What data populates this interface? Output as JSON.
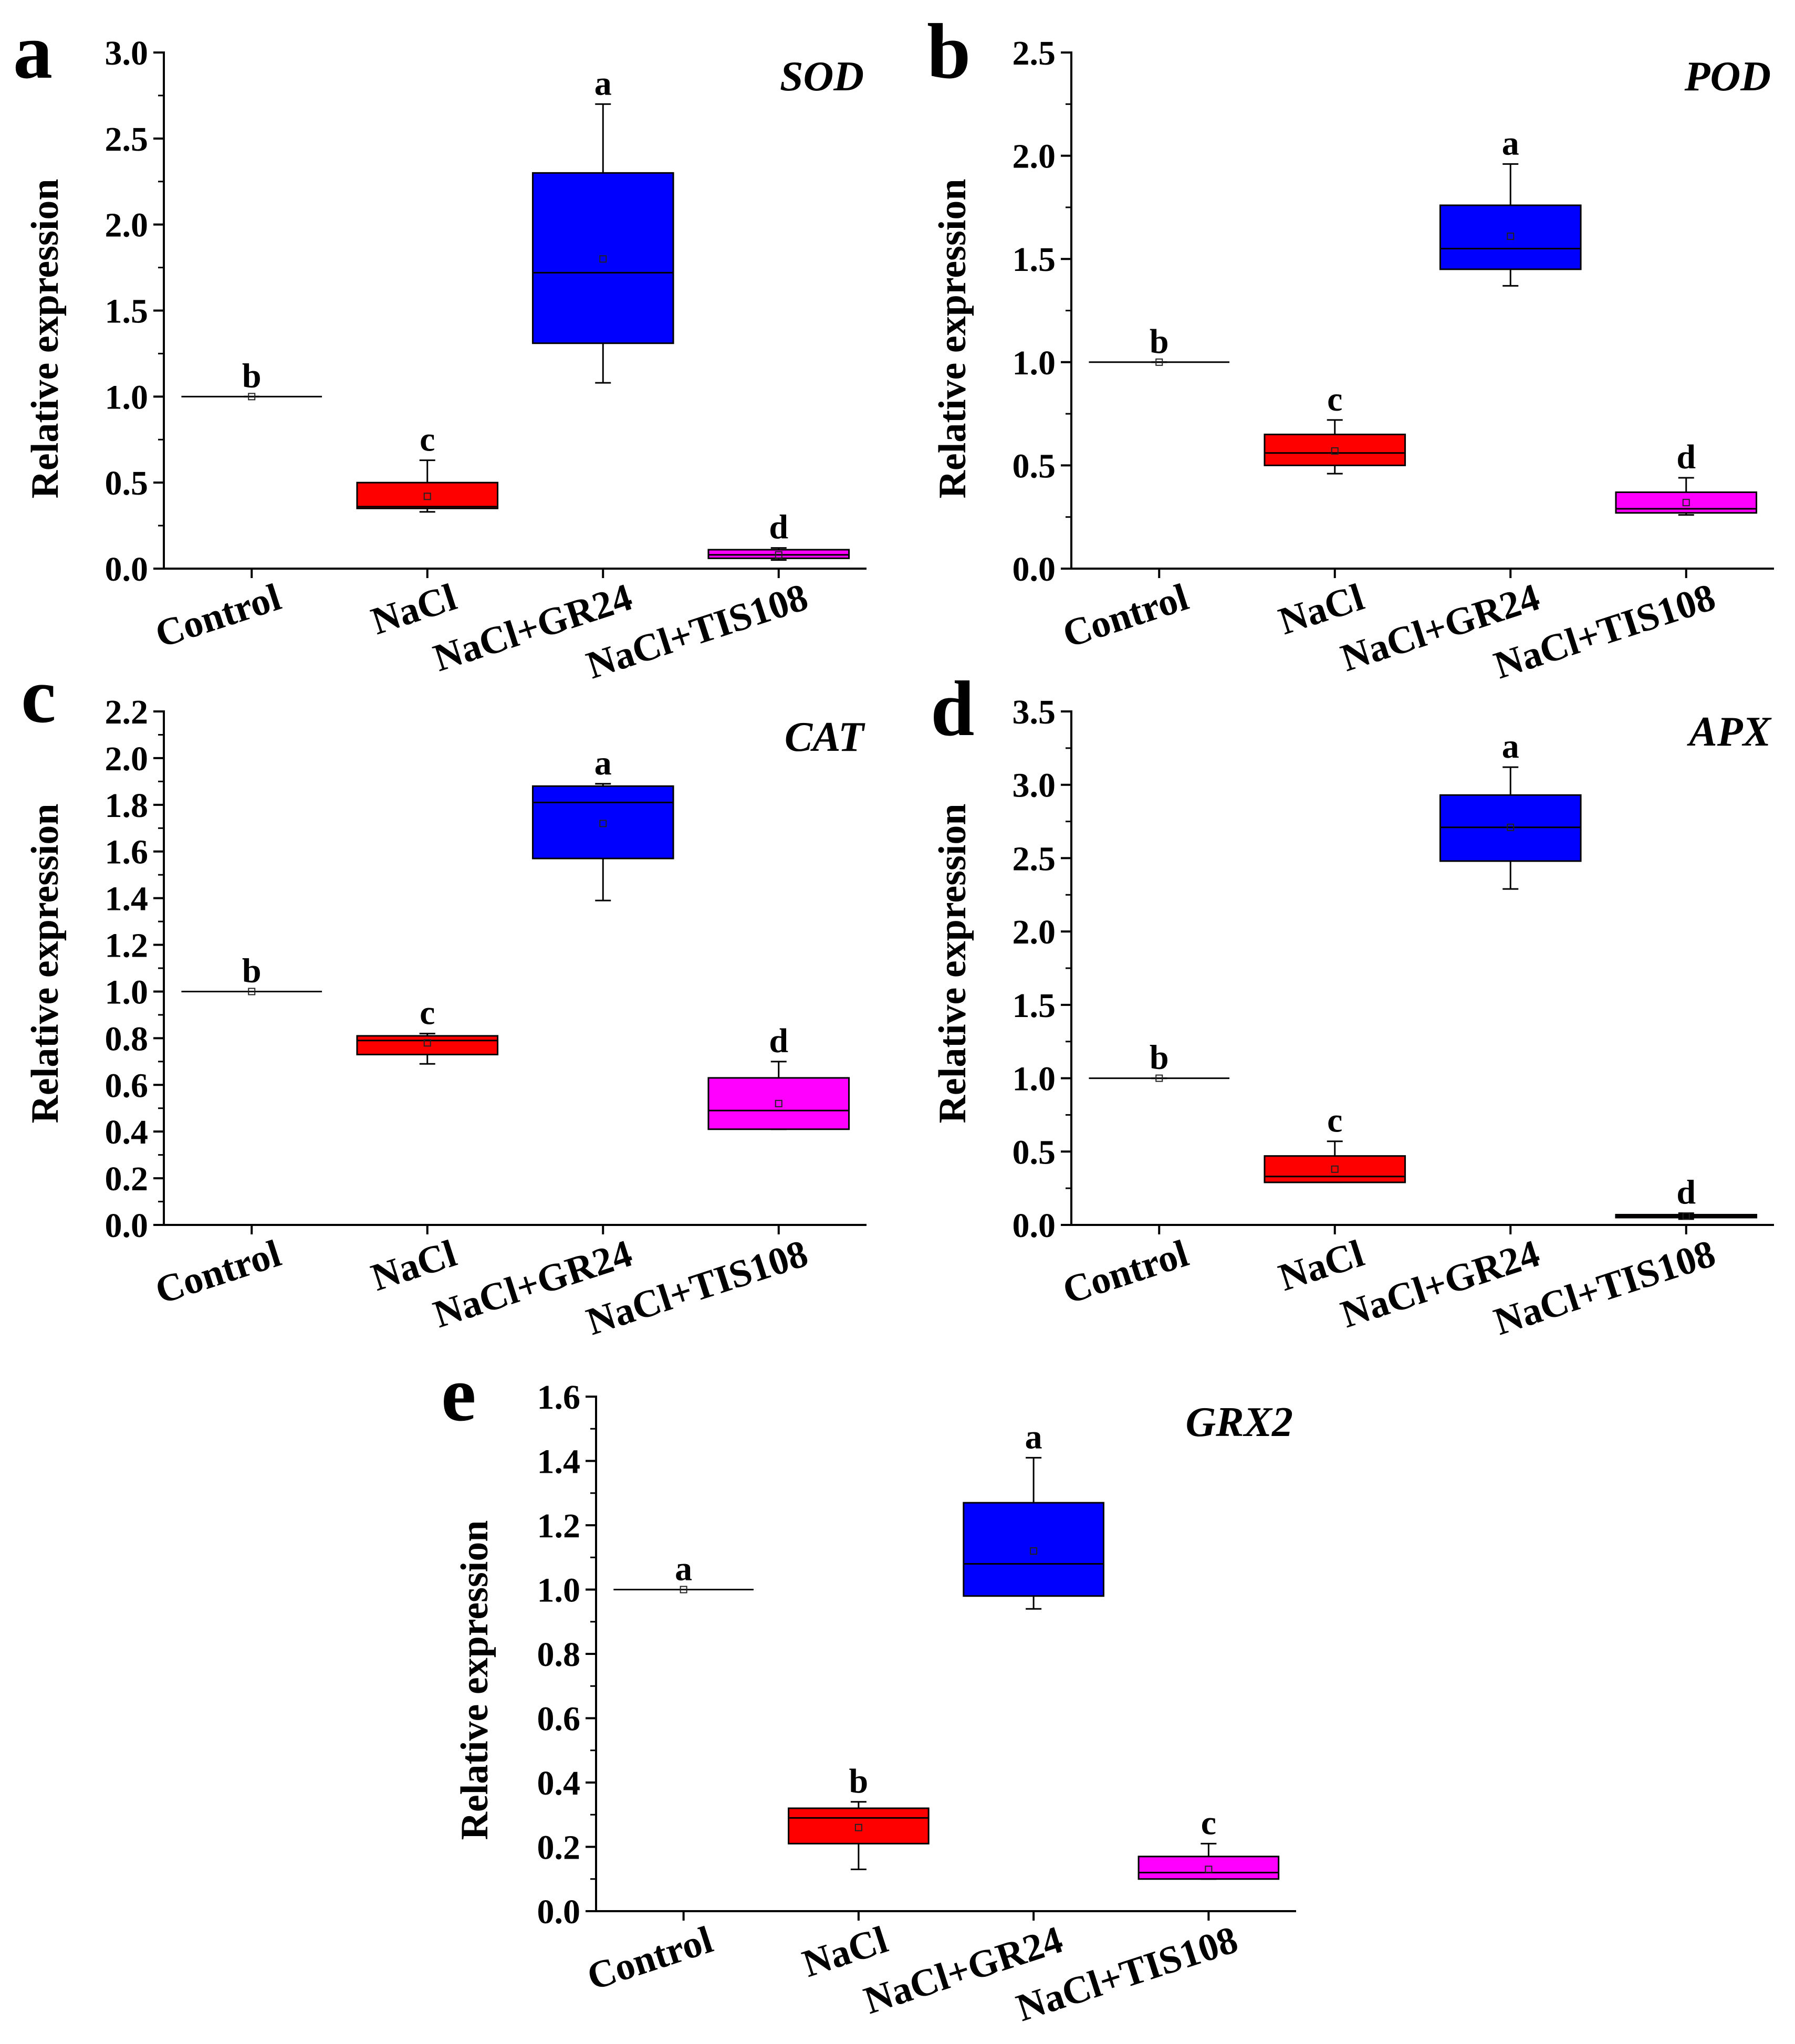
{
  "chart_data": [
    {
      "type": "box",
      "panel": "a",
      "gene": "SOD",
      "ylabel": "Relative expression",
      "ylim": [
        0,
        3.0
      ],
      "yticks": [
        "0.0",
        "0.5",
        "1.0",
        "1.5",
        "2.0",
        "2.5",
        "3.0"
      ],
      "categories": [
        "Control",
        "NaCl",
        "NaCl+GR24",
        "NaCl+TIS108"
      ],
      "boxes": [
        {
          "category": "Control",
          "color": "#000000",
          "min": 1.0,
          "q1": 1.0,
          "median": 1.0,
          "q3": 1.0,
          "max": 1.0,
          "mean": 1.0,
          "letter": "b"
        },
        {
          "category": "NaCl",
          "color": "#ff0000",
          "min": 0.33,
          "q1": 0.35,
          "median": 0.36,
          "q3": 0.5,
          "max": 0.63,
          "mean": 0.42,
          "letter": "c"
        },
        {
          "category": "NaCl+GR24",
          "color": "#0000ff",
          "min": 1.08,
          "q1": 1.31,
          "median": 1.72,
          "q3": 2.3,
          "max": 2.7,
          "mean": 1.8,
          "letter": "a"
        },
        {
          "category": "NaCl+TIS108",
          "color": "#ff00ff",
          "min": 0.05,
          "q1": 0.06,
          "median": 0.08,
          "q3": 0.11,
          "max": 0.12,
          "mean": 0.08,
          "letter": "d"
        }
      ]
    },
    {
      "type": "box",
      "panel": "b",
      "gene": "POD",
      "ylabel": "Relative expression",
      "ylim": [
        0,
        2.5
      ],
      "yticks": [
        "0.0",
        "0.5",
        "1.0",
        "1.5",
        "2.0",
        "2.5"
      ],
      "categories": [
        "Control",
        "NaCl",
        "NaCl+GR24",
        "NaCl+TIS108"
      ],
      "boxes": [
        {
          "category": "Control",
          "color": "#000000",
          "min": 1.0,
          "q1": 1.0,
          "median": 1.0,
          "q3": 1.0,
          "max": 1.0,
          "mean": 1.0,
          "letter": "b"
        },
        {
          "category": "NaCl",
          "color": "#ff0000",
          "min": 0.46,
          "q1": 0.5,
          "median": 0.56,
          "q3": 0.65,
          "max": 0.72,
          "mean": 0.57,
          "letter": "c"
        },
        {
          "category": "NaCl+GR24",
          "color": "#0000ff",
          "min": 1.37,
          "q1": 1.45,
          "median": 1.55,
          "q3": 1.76,
          "max": 1.96,
          "mean": 1.61,
          "letter": "a"
        },
        {
          "category": "NaCl+TIS108",
          "color": "#ff00ff",
          "min": 0.26,
          "q1": 0.27,
          "median": 0.29,
          "q3": 0.37,
          "max": 0.44,
          "mean": 0.32,
          "letter": "d"
        }
      ]
    },
    {
      "type": "box",
      "panel": "c",
      "gene": "CAT",
      "ylabel": "Relative expression",
      "ylim": [
        0,
        2.2
      ],
      "yticks": [
        "0.0",
        "0.2",
        "0.4",
        "0.6",
        "0.8",
        "1.0",
        "1.2",
        "1.4",
        "1.6",
        "1.8",
        "2.0",
        "2.2"
      ],
      "categories": [
        "Control",
        "NaCl",
        "NaCl+GR24",
        "NaCl+TIS108"
      ],
      "boxes": [
        {
          "category": "Control",
          "color": "#000000",
          "min": 1.0,
          "q1": 1.0,
          "median": 1.0,
          "q3": 1.0,
          "max": 1.0,
          "mean": 1.0,
          "letter": "b"
        },
        {
          "category": "NaCl",
          "color": "#ff0000",
          "min": 0.69,
          "q1": 0.73,
          "median": 0.79,
          "q3": 0.81,
          "max": 0.82,
          "mean": 0.78,
          "letter": "c"
        },
        {
          "category": "NaCl+GR24",
          "color": "#0000ff",
          "min": 1.39,
          "q1": 1.57,
          "median": 1.81,
          "q3": 1.88,
          "max": 1.89,
          "mean": 1.72,
          "letter": "a"
        },
        {
          "category": "NaCl+TIS108",
          "color": "#ff00ff",
          "min": 0.41,
          "q1": 0.41,
          "median": 0.49,
          "q3": 0.63,
          "max": 0.7,
          "mean": 0.52,
          "letter": "d"
        }
      ]
    },
    {
      "type": "box",
      "panel": "d",
      "gene": "APX",
      "ylabel": "Relative expression",
      "ylim": [
        0,
        3.5
      ],
      "yticks": [
        "0.0",
        "0.5",
        "1.0",
        "1.5",
        "2.0",
        "2.5",
        "3.0",
        "3.5"
      ],
      "categories": [
        "Control",
        "NaCl",
        "NaCl+GR24",
        "NaCl+TIS108"
      ],
      "boxes": [
        {
          "category": "Control",
          "color": "#000000",
          "min": 1.0,
          "q1": 1.0,
          "median": 1.0,
          "q3": 1.0,
          "max": 1.0,
          "mean": 1.0,
          "letter": "b"
        },
        {
          "category": "NaCl",
          "color": "#ff0000",
          "min": 0.29,
          "q1": 0.29,
          "median": 0.33,
          "q3": 0.47,
          "max": 0.57,
          "mean": 0.38,
          "letter": "c"
        },
        {
          "category": "NaCl+GR24",
          "color": "#0000ff",
          "min": 2.29,
          "q1": 2.48,
          "median": 2.71,
          "q3": 2.93,
          "max": 3.12,
          "mean": 2.71,
          "letter": "a"
        },
        {
          "category": "NaCl+TIS108",
          "color": "#800080",
          "min": 0.04,
          "q1": 0.05,
          "median": 0.06,
          "q3": 0.07,
          "max": 0.08,
          "mean": 0.06,
          "letter": "d"
        }
      ]
    },
    {
      "type": "box",
      "panel": "e",
      "gene": "GRX2",
      "ylabel": "Relative expression",
      "ylim": [
        0,
        1.6
      ],
      "yticks": [
        "0.0",
        "0.2",
        "0.4",
        "0.6",
        "0.8",
        "1.0",
        "1.2",
        "1.4",
        "1.6"
      ],
      "categories": [
        "Control",
        "NaCl",
        "NaCl+GR24",
        "NaCl+TIS108"
      ],
      "boxes": [
        {
          "category": "Control",
          "color": "#000000",
          "min": 1.0,
          "q1": 1.0,
          "median": 1.0,
          "q3": 1.0,
          "max": 1.0,
          "mean": 1.0,
          "letter": "a"
        },
        {
          "category": "NaCl",
          "color": "#ff0000",
          "min": 0.13,
          "q1": 0.21,
          "median": 0.29,
          "q3": 0.32,
          "max": 0.34,
          "mean": 0.26,
          "letter": "b"
        },
        {
          "category": "NaCl+GR24",
          "color": "#0000ff",
          "min": 0.94,
          "q1": 0.98,
          "median": 1.08,
          "q3": 1.27,
          "max": 1.41,
          "mean": 1.12,
          "letter": "a"
        },
        {
          "category": "NaCl+TIS108",
          "color": "#ff00ff",
          "min": 0.1,
          "q1": 0.1,
          "median": 0.12,
          "q3": 0.17,
          "max": 0.21,
          "mean": 0.13,
          "letter": "c"
        }
      ]
    }
  ]
}
